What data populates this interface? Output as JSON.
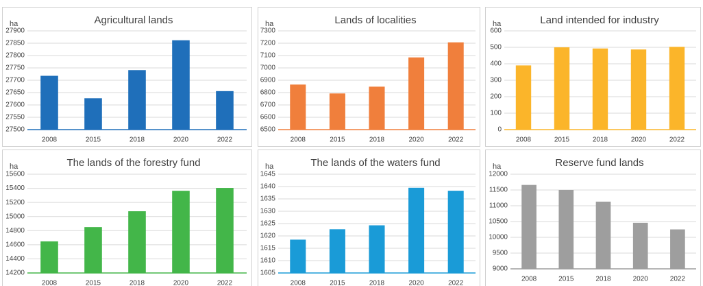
{
  "chart_data": [
    {
      "type": "bar",
      "title": "Agricultural lands",
      "y_label": "ha",
      "categories": [
        "2008",
        "2015",
        "2018",
        "2020",
        "2022"
      ],
      "values": [
        27718,
        27627,
        27741,
        27862,
        27656
      ],
      "color": "#1f6fba",
      "ylim": [
        27500,
        27900
      ],
      "yticks": [
        27500,
        27550,
        27600,
        27650,
        27700,
        27750,
        27800,
        27850,
        27900
      ],
      "grid": true
    },
    {
      "type": "bar",
      "title": "Lands of localities",
      "y_label": "ha",
      "categories": [
        "2008",
        "2015",
        "2018",
        "2020",
        "2022"
      ],
      "values": [
        6865,
        6793,
        6848,
        7085,
        7207
      ],
      "color": "#f07f3c",
      "ylim": [
        6500,
        7300
      ],
      "yticks": [
        6500,
        6600,
        6700,
        6800,
        6900,
        7000,
        7100,
        7200,
        7300
      ],
      "grid": true
    },
    {
      "type": "bar",
      "title": "Land intended for industry",
      "y_label": "ha",
      "categories": [
        "2008",
        "2015",
        "2018",
        "2020",
        "2022"
      ],
      "values": [
        390,
        500,
        493,
        487,
        503
      ],
      "color": "#fbb52a",
      "ylim": [
        0,
        600
      ],
      "yticks": [
        0,
        100,
        200,
        300,
        400,
        500,
        600
      ],
      "grid": true
    },
    {
      "type": "bar",
      "title": "The lands of the forestry fund",
      "y_label": "ha",
      "categories": [
        "2008",
        "2015",
        "2018",
        "2020",
        "2022"
      ],
      "values": [
        14648,
        14850,
        15075,
        15365,
        15405
      ],
      "color": "#43b649",
      "ylim": [
        14200,
        15600
      ],
      "yticks": [
        14200,
        14400,
        14600,
        14800,
        15000,
        15200,
        15400,
        15600
      ],
      "grid": true
    },
    {
      "type": "bar",
      "title": "The lands of the waters fund",
      "y_label": "ha",
      "categories": [
        "2008",
        "2015",
        "2018",
        "2020",
        "2022"
      ],
      "values": [
        1618.5,
        1622.7,
        1624.3,
        1639.5,
        1638.3
      ],
      "color": "#1a9bd7",
      "ylim": [
        1605,
        1645
      ],
      "yticks": [
        1605,
        1610,
        1615,
        1620,
        1625,
        1630,
        1635,
        1640,
        1645
      ],
      "grid": true
    },
    {
      "type": "bar",
      "title": "Reserve fund lands",
      "y_label": "ha",
      "categories": [
        "2008",
        "2015",
        "2018",
        "2020",
        "2022"
      ],
      "values": [
        11660,
        11500,
        11130,
        10460,
        10250
      ],
      "color": "#9e9e9e",
      "ylim": [
        9000,
        12000
      ],
      "yticks": [
        9000,
        9500,
        10000,
        10500,
        11000,
        11500,
        12000
      ],
      "grid": true
    }
  ]
}
